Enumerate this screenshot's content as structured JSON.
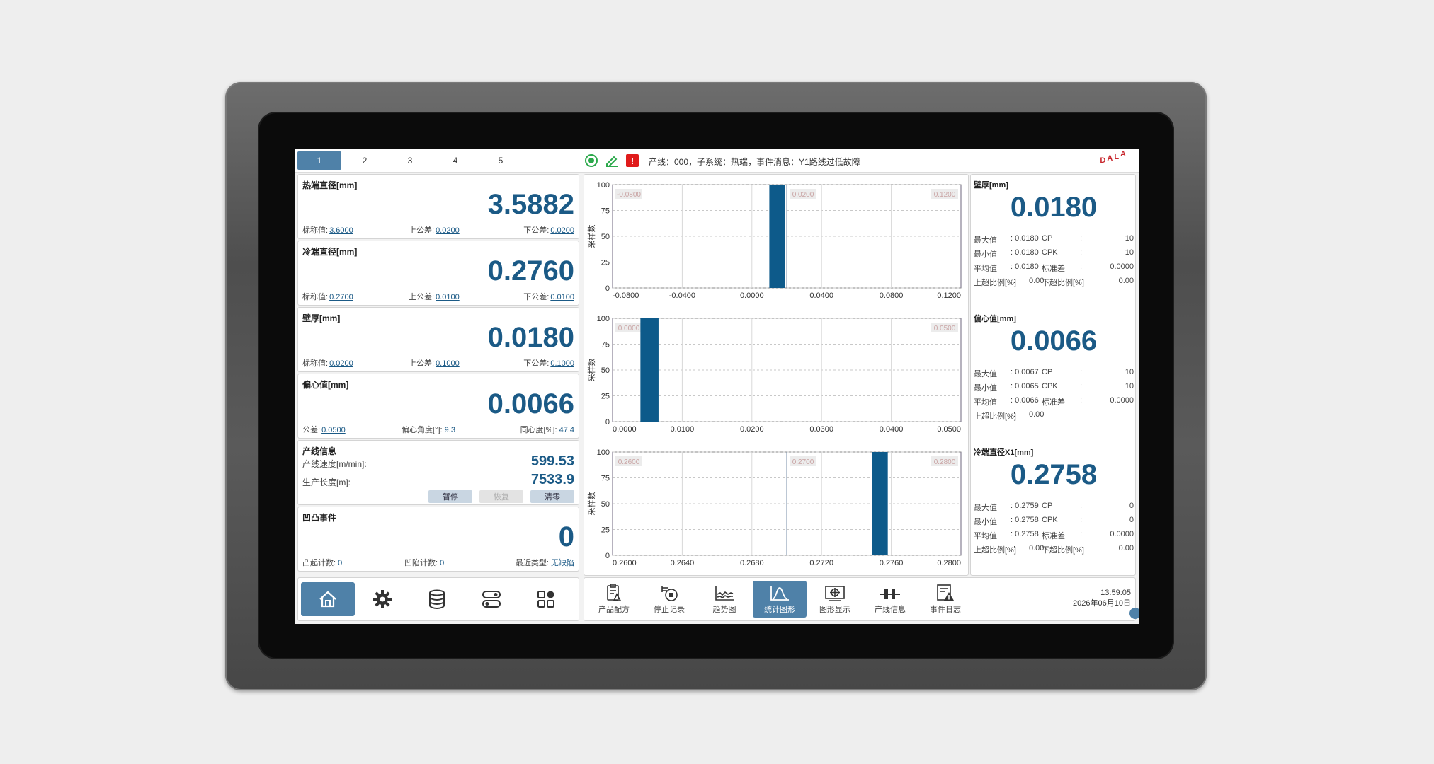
{
  "tabs": [
    "1",
    "2",
    "3",
    "4",
    "5"
  ],
  "active_tab": 0,
  "status_bar": {
    "alarm_glyph": "!",
    "event_message": "产线：000，子系统：热端，事件消息：Y1路线过低故障",
    "logo_letters": [
      "D",
      "A",
      "L",
      "A"
    ]
  },
  "cards": {
    "hot_diameter": {
      "title": "热端直径[mm]",
      "value": "3.5882",
      "nominal_label": "标称值:",
      "nominal": "3.6000",
      "upper_label": "上公差:",
      "upper": "0.0200",
      "lower_label": "下公差:",
      "lower": "0.0200"
    },
    "cold_diameter": {
      "title": "冷端直径[mm]",
      "value": "0.2760",
      "nominal_label": "标称值:",
      "nominal": "0.2700",
      "upper_label": "上公差:",
      "upper": "0.0100",
      "lower_label": "下公差:",
      "lower": "0.0100"
    },
    "wall_thickness": {
      "title": "壁厚[mm]",
      "value": "0.0180",
      "nominal_label": "标称值:",
      "nominal": "0.0200",
      "upper_label": "上公差:",
      "upper": "0.1000",
      "lower_label": "下公差:",
      "lower": "0.1000"
    },
    "eccentricity": {
      "title": "偏心值[mm]",
      "value": "0.0066",
      "tol_label": "公差:",
      "tol": "0.0500",
      "angle_label": "偏心角度[°]:",
      "angle": "9.3",
      "concentric_label": "同心度[%]:",
      "concentric": "47.4"
    },
    "line_info": {
      "title": "产线信息",
      "speed_label": "产线速度[m/min]:",
      "speed": "599.53",
      "length_label": "生产长度[m]:",
      "length": "7533.9",
      "pause": "暂停",
      "resume": "恢复",
      "clear": "清零"
    },
    "bump_events": {
      "title": "凹凸事件",
      "value": "0",
      "bump_label": "凸起计数:",
      "bump": "0",
      "dent_label": "凹陷计数:",
      "dent": "0",
      "recent_label": "最近类型:",
      "recent": "无缺陷"
    }
  },
  "left_nav": [
    {
      "name": "home-icon",
      "active": true
    },
    {
      "name": "gear-icon",
      "active": false
    },
    {
      "name": "database-icon",
      "active": false
    },
    {
      "name": "toggle-icon",
      "active": false
    },
    {
      "name": "apps-icon",
      "active": false
    }
  ],
  "chart_data": [
    {
      "type": "bar",
      "ylabel": "采样数",
      "ylim": [
        0,
        100
      ],
      "yticks": [
        "100",
        "75",
        "50",
        "25",
        "0"
      ],
      "xlim": [
        -0.08,
        0.12
      ],
      "xticks": [
        "-0.0800",
        "-0.0400",
        "0.0000",
        "0.0400",
        "0.0800",
        "0.1200"
      ],
      "bars": [
        {
          "x0": 0.01,
          "x1": 0.019,
          "value": 100
        }
      ],
      "markers": [
        {
          "x": -0.08,
          "label": "-0.0800"
        },
        {
          "x": 0.02,
          "label": "0.0200"
        },
        {
          "x": 0.12,
          "label": "0.1200"
        }
      ],
      "color": "#0d5a8a"
    },
    {
      "type": "bar",
      "ylabel": "采样数",
      "ylim": [
        0,
        100
      ],
      "yticks": [
        "100",
        "75",
        "50",
        "25",
        "0"
      ],
      "xlim": [
        0.0,
        0.05
      ],
      "xticks": [
        "0.0000",
        "0.0100",
        "0.0200",
        "0.0300",
        "0.0400",
        "0.0500"
      ],
      "bars": [
        {
          "x0": 0.004,
          "x1": 0.0066,
          "value": 100
        }
      ],
      "markers": [
        {
          "x": 0.0,
          "label": "0.0000"
        },
        {
          "x": 0.05,
          "label": "0.0500"
        }
      ],
      "color": "#0d5a8a"
    },
    {
      "type": "bar",
      "ylabel": "采样数",
      "ylim": [
        0,
        100
      ],
      "yticks": [
        "100",
        "75",
        "50",
        "25",
        "0"
      ],
      "xlim": [
        0.26,
        0.28
      ],
      "xticks": [
        "0.2600",
        "0.2640",
        "0.2680",
        "0.2720",
        "0.2760",
        "0.2800"
      ],
      "bars": [
        {
          "x0": 0.2749,
          "x1": 0.2758,
          "value": 100
        }
      ],
      "markers": [
        {
          "x": 0.26,
          "label": "0.2600"
        },
        {
          "x": 0.27,
          "label": "0.2700"
        },
        {
          "x": 0.28,
          "label": "0.2800"
        }
      ],
      "color": "#0d5a8a"
    }
  ],
  "stats": [
    {
      "title": "壁厚[mm]",
      "value": "0.0180",
      "rows": [
        [
          "最大值",
          ": 0.0180",
          "CP",
          ":",
          "10"
        ],
        [
          "最小值",
          ": 0.0180",
          "CPK",
          ":",
          "10"
        ],
        [
          "平均值",
          ": 0.0180",
          "标准差",
          ":",
          "0.0000"
        ],
        [
          "上超比例[%]",
          ":",
          "0.00",
          "下超比例[%]",
          ":",
          "0.00"
        ]
      ]
    },
    {
      "title": "偏心值[mm]",
      "value": "0.0066",
      "rows": [
        [
          "最大值",
          ": 0.0067",
          "CP",
          ":",
          "10"
        ],
        [
          "最小值",
          ": 0.0065",
          "CPK",
          ":",
          "10"
        ],
        [
          "平均值",
          ": 0.0066",
          "标准差",
          ":",
          "0.0000"
        ],
        [
          "上超比例[%]",
          ":",
          "0.00"
        ]
      ]
    },
    {
      "title": "冷端直径X1[mm]",
      "value": "0.2758",
      "rows": [
        [
          "最大值",
          ": 0.2759",
          "CP",
          ":",
          "0"
        ],
        [
          "最小值",
          ": 0.2758",
          "CPK",
          ":",
          "0"
        ],
        [
          "平均值",
          ": 0.2758",
          "标准差",
          ":",
          "0.0000"
        ],
        [
          "上超比例[%]",
          ":",
          "0.00",
          "下超比例[%]",
          ":",
          "0.00"
        ]
      ]
    }
  ],
  "toolbar": [
    {
      "name": "recipe-icon",
      "label": "产品配方"
    },
    {
      "name": "stop-record-icon",
      "label": "停止记录"
    },
    {
      "name": "trend-icon",
      "label": "趋势图"
    },
    {
      "name": "statistics-icon",
      "label": "统计图形",
      "active": true
    },
    {
      "name": "graphic-display-icon",
      "label": "图形显示"
    },
    {
      "name": "line-info-icon",
      "label": "产线信息"
    },
    {
      "name": "event-log-icon",
      "label": "事件日志"
    }
  ],
  "clock": {
    "time": "13:59:05",
    "date": "2026年06月10日"
  }
}
